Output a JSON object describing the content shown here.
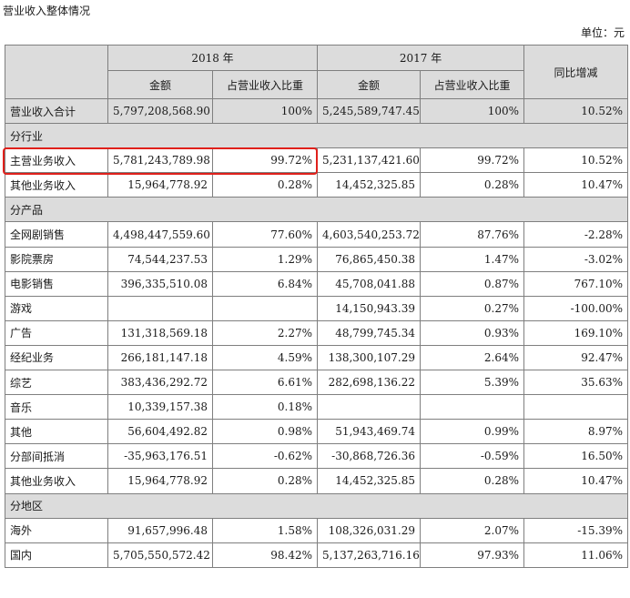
{
  "title": "营业收入整体情况",
  "unit": "单位：元",
  "header": {
    "year_2018": "2018 年",
    "year_2017": "2017 年",
    "yoy": "同比增减",
    "amount_2018": "金额",
    "ratio_2018": "占营业收入比重",
    "amount_2017": "金额",
    "ratio_2017": "占营业收入比重"
  },
  "rows": [
    {
      "type": "total",
      "label": "营业收入合计",
      "a2018": "5,797,208,568.90",
      "r2018": "100%",
      "a2017": "5,245,589,747.45",
      "r2017": "100%",
      "yoy": "10.52%"
    },
    {
      "type": "section",
      "label": "分行业"
    },
    {
      "type": "data",
      "label": "主营业务收入",
      "a2018": "5,781,243,789.98",
      "r2018": "99.72%",
      "a2017": "5,231,137,421.60",
      "r2017": "99.72%",
      "yoy": "10.52%"
    },
    {
      "type": "data",
      "label": "其他业务收入",
      "a2018": "15,964,778.92",
      "r2018": "0.28%",
      "a2017": "14,452,325.85",
      "r2017": "0.28%",
      "yoy": "10.47%"
    },
    {
      "type": "section",
      "label": "分产品"
    },
    {
      "type": "data",
      "label": "全网剧销售",
      "a2018": "4,498,447,559.60",
      "r2018": "77.60%",
      "a2017": "4,603,540,253.72",
      "r2017": "87.76%",
      "yoy": "-2.28%"
    },
    {
      "type": "data",
      "label": "影院票房",
      "a2018": "74,544,237.53",
      "r2018": "1.29%",
      "a2017": "76,865,450.38",
      "r2017": "1.47%",
      "yoy": "-3.02%"
    },
    {
      "type": "data",
      "label": "电影销售",
      "a2018": "396,335,510.08",
      "r2018": "6.84%",
      "a2017": "45,708,041.88",
      "r2017": "0.87%",
      "yoy": "767.10%"
    },
    {
      "type": "data",
      "label": "游戏",
      "a2018": "",
      "r2018": "",
      "a2017": "14,150,943.39",
      "r2017": "0.27%",
      "yoy": "-100.00%"
    },
    {
      "type": "data",
      "label": "广告",
      "a2018": "131,318,569.18",
      "r2018": "2.27%",
      "a2017": "48,799,745.34",
      "r2017": "0.93%",
      "yoy": "169.10%"
    },
    {
      "type": "data",
      "label": "经纪业务",
      "a2018": "266,181,147.18",
      "r2018": "4.59%",
      "a2017": "138,300,107.29",
      "r2017": "2.64%",
      "yoy": "92.47%"
    },
    {
      "type": "data",
      "label": "综艺",
      "a2018": "383,436,292.72",
      "r2018": "6.61%",
      "a2017": "282,698,136.22",
      "r2017": "5.39%",
      "yoy": "35.63%"
    },
    {
      "type": "data",
      "label": "音乐",
      "a2018": "10,339,157.38",
      "r2018": "0.18%",
      "a2017": "",
      "r2017": "",
      "yoy": ""
    },
    {
      "type": "data",
      "label": "其他",
      "a2018": "56,604,492.82",
      "r2018": "0.98%",
      "a2017": "51,943,469.74",
      "r2017": "0.99%",
      "yoy": "8.97%"
    },
    {
      "type": "data",
      "label": "分部间抵消",
      "a2018": "-35,963,176.51",
      "r2018": "-0.62%",
      "a2017": "-30,868,726.36",
      "r2017": "-0.59%",
      "yoy": "16.50%"
    },
    {
      "type": "data",
      "label": "其他业务收入",
      "a2018": "15,964,778.92",
      "r2018": "0.28%",
      "a2017": "14,452,325.85",
      "r2017": "0.28%",
      "yoy": "10.47%"
    },
    {
      "type": "section",
      "label": "分地区"
    },
    {
      "type": "data",
      "label": "海外",
      "a2018": "91,657,996.48",
      "r2018": "1.58%",
      "a2017": "108,326,031.29",
      "r2017": "2.07%",
      "yoy": "-15.39%"
    },
    {
      "type": "data",
      "label": "国内",
      "a2018": "5,705,550,572.42",
      "r2018": "98.42%",
      "a2017": "5,137,263,716.16",
      "r2017": "97.93%",
      "yoy": "11.06%"
    }
  ],
  "highlight_color": "#e0201b"
}
